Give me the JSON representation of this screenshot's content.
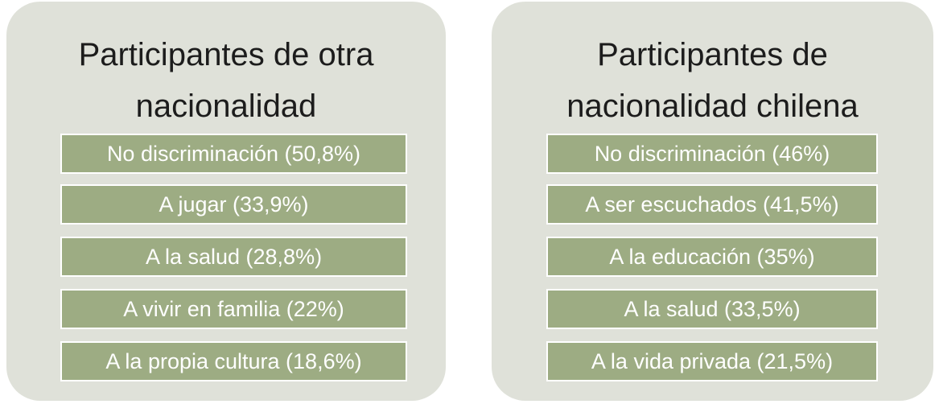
{
  "panels": [
    {
      "title": [
        "Participantes de otra",
        "nacionalidad"
      ],
      "items": [
        "No discriminación (50,8%)",
        "A jugar (33,9%)",
        "A la salud (28,8%)",
        "A vivir en familia (22%)",
        "A la propia cultura (18,6%)"
      ]
    },
    {
      "title": [
        "Participantes de",
        "nacionalidad chilena"
      ],
      "items": [
        "No discriminación (46%)",
        "A ser escuchados (41,5%)",
        "A la educación (35%)",
        "A la salud (33,5%)",
        "A la vida privada (21,5%)"
      ]
    }
  ]
}
